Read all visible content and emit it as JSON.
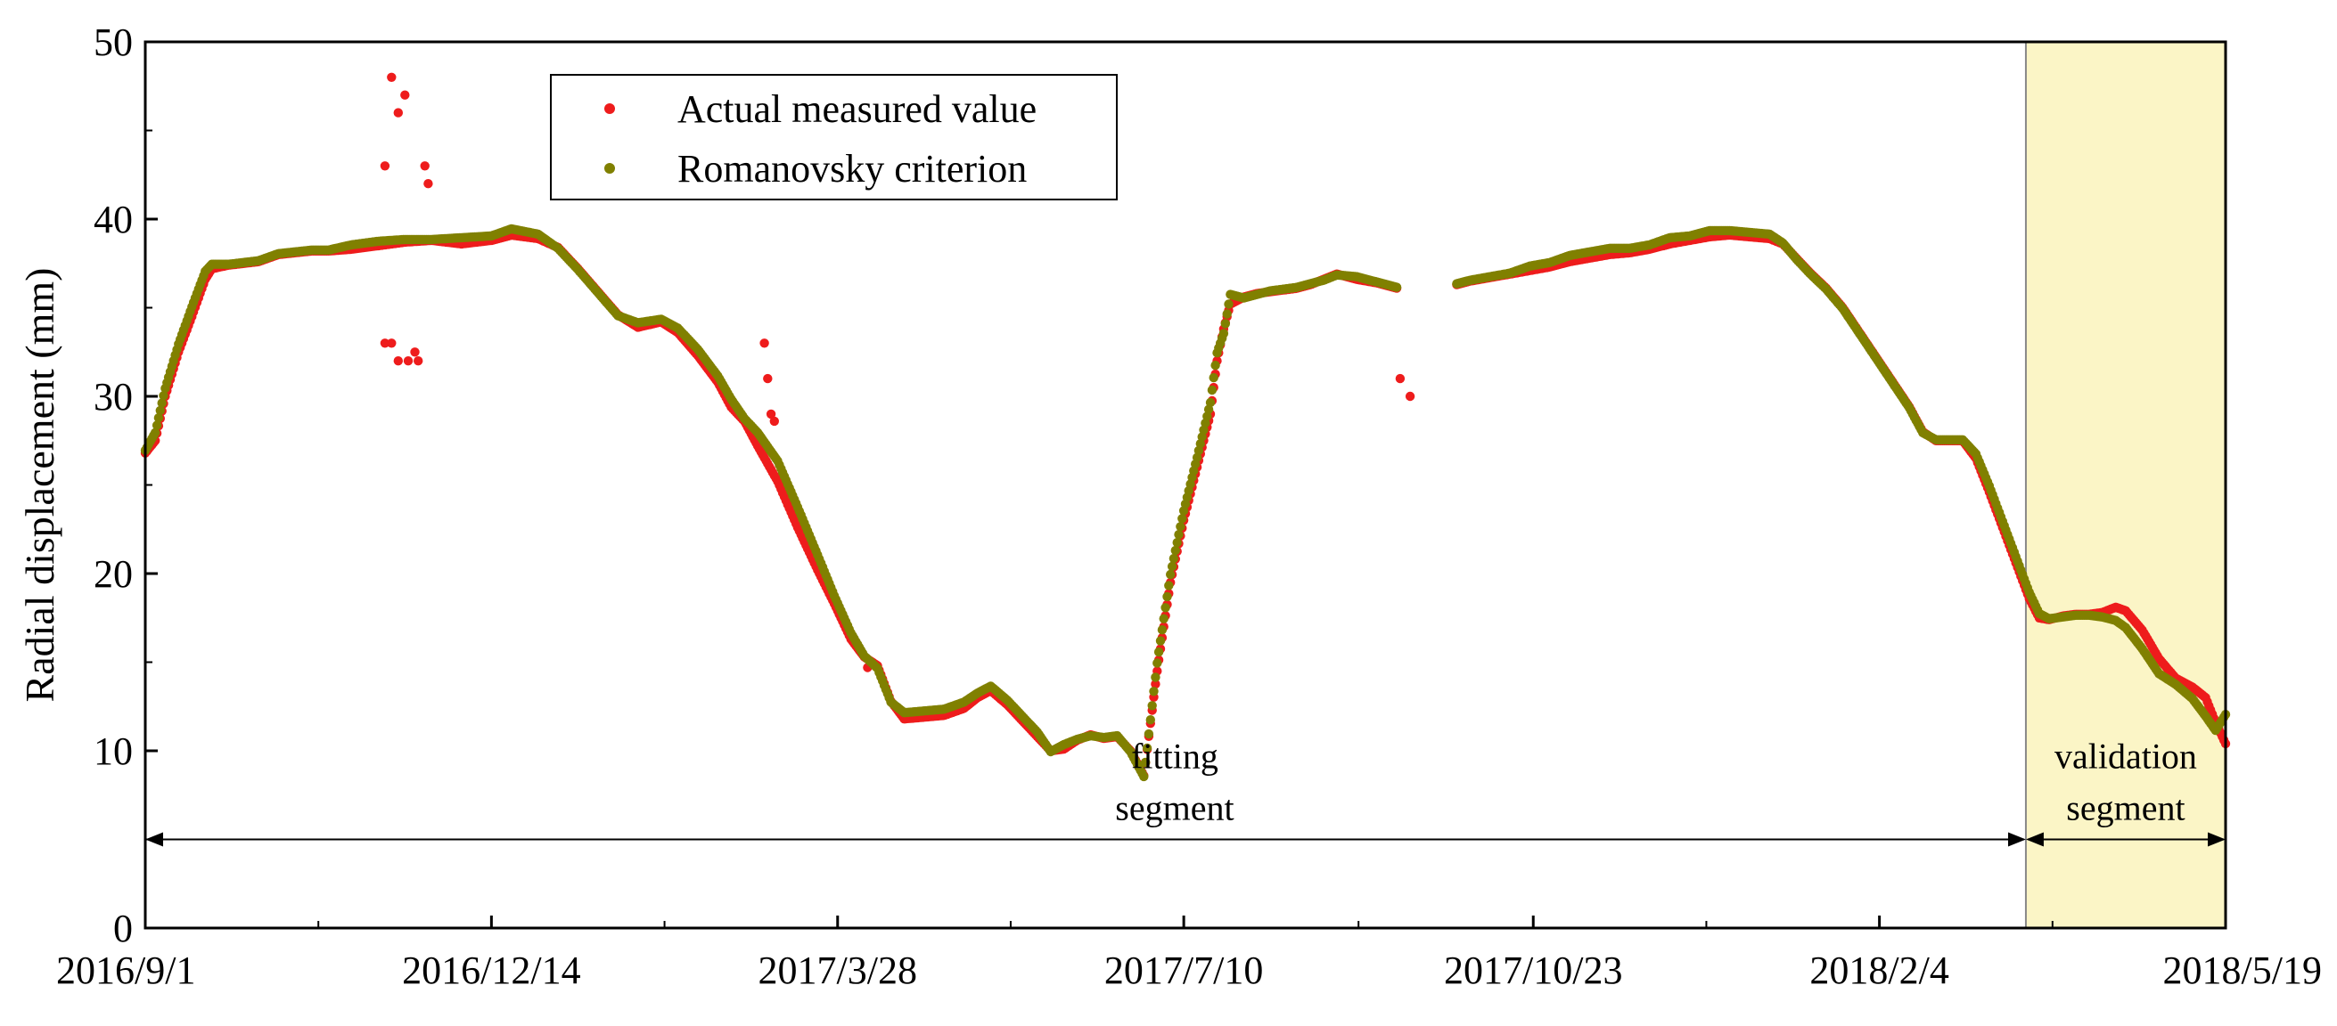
{
  "chart_data": {
    "type": "scatter",
    "title": "",
    "xlabel": "",
    "ylabel": "Radial displacement (mm)",
    "x_unit": "days since 2016/9/1",
    "xlim": [
      0,
      625
    ],
    "ylim": [
      0,
      50
    ],
    "yticks": [
      0,
      10,
      20,
      30,
      40,
      50
    ],
    "xticks": [
      {
        "value": 0,
        "label": "2016/9/1"
      },
      {
        "value": 104,
        "label": "2016/12/14"
      },
      {
        "value": 208,
        "label": "2017/3/28"
      },
      {
        "value": 312,
        "label": "2017/7/10"
      },
      {
        "value": 417,
        "label": "2017/10/23"
      },
      {
        "value": 521,
        "label": "2018/2/4"
      },
      {
        "value": 625,
        "label": "2018/5/19"
      }
    ],
    "grid": false,
    "legend_position": "top-center",
    "colors": {
      "actual": "#ee1c1c",
      "romanovsky": "#808000",
      "validation_fill": "#fbf5c6"
    },
    "series": [
      {
        "name": "Actual measured value",
        "color_key": "actual",
        "points": [
          [
            0,
            26.8
          ],
          [
            3,
            27.5
          ],
          [
            6,
            30
          ],
          [
            10,
            32.5
          ],
          [
            14,
            34.5
          ],
          [
            18,
            36.6
          ],
          [
            20,
            37.2
          ],
          [
            25,
            37.4
          ],
          [
            34,
            37.6
          ],
          [
            40,
            38
          ],
          [
            45,
            38.1
          ],
          [
            50,
            38.2
          ],
          [
            55,
            38.2
          ],
          [
            62,
            38.3
          ],
          [
            70,
            38.5
          ],
          [
            78,
            38.7
          ],
          [
            86,
            38.8
          ],
          [
            95,
            38.6
          ],
          [
            104,
            38.8
          ],
          [
            110,
            39.1
          ],
          [
            118,
            38.9
          ],
          [
            124,
            38.4
          ],
          [
            130,
            37.2
          ],
          [
            136,
            35.9
          ],
          [
            142,
            34.6
          ],
          [
            148,
            33.9
          ],
          [
            155,
            34.2
          ],
          [
            160,
            33.6
          ],
          [
            166,
            32.3
          ],
          [
            172,
            30.8
          ],
          [
            176,
            29.4
          ],
          [
            180,
            28.6
          ],
          [
            184,
            27.2
          ],
          [
            190,
            25.2
          ],
          [
            196,
            22.6
          ],
          [
            202,
            20.2
          ],
          [
            207,
            18.3
          ],
          [
            212,
            16.3
          ],
          [
            216,
            15.3
          ],
          [
            220,
            14.8
          ],
          [
            224,
            12.8
          ],
          [
            228,
            11.8
          ],
          [
            234,
            11.9
          ],
          [
            240,
            12
          ],
          [
            246,
            12.4
          ],
          [
            250,
            13
          ],
          [
            254,
            13.4
          ],
          [
            259,
            12.6
          ],
          [
            264,
            11.6
          ],
          [
            268,
            10.8
          ],
          [
            272,
            10
          ],
          [
            276,
            10.1
          ],
          [
            280,
            10.6
          ],
          [
            284,
            10.9
          ],
          [
            288,
            10.7
          ],
          [
            292,
            10.8
          ],
          [
            296,
            10
          ],
          [
            300,
            8.6
          ],
          [
            304,
            14.5
          ],
          [
            308,
            19.5
          ],
          [
            312,
            23
          ],
          [
            316,
            26
          ],
          [
            320,
            29
          ],
          [
            322,
            32
          ],
          [
            324,
            33.8
          ],
          [
            326,
            35.2
          ],
          [
            330,
            35.6
          ],
          [
            334,
            35.8
          ],
          [
            338,
            35.9
          ],
          [
            342,
            36
          ],
          [
            346,
            36.1
          ],
          [
            350,
            36.3
          ],
          [
            354,
            36.6
          ],
          [
            358,
            36.9
          ],
          [
            364,
            36.6
          ],
          [
            370,
            36.4
          ],
          [
            376,
            36.1
          ],
          [
            394,
            36.3
          ],
          [
            398,
            36.5
          ],
          [
            404,
            36.7
          ],
          [
            410,
            36.9
          ],
          [
            416,
            37.1
          ],
          [
            422,
            37.3
          ],
          [
            428,
            37.6
          ],
          [
            434,
            37.8
          ],
          [
            440,
            38
          ],
          [
            446,
            38.1
          ],
          [
            452,
            38.3
          ],
          [
            458,
            38.6
          ],
          [
            464,
            38.8
          ],
          [
            470,
            39
          ],
          [
            476,
            39.1
          ],
          [
            482,
            39
          ],
          [
            488,
            38.9
          ],
          [
            492,
            38.6
          ],
          [
            496,
            37.8
          ],
          [
            500,
            37
          ],
          [
            505,
            36.1
          ],
          [
            510,
            35
          ],
          [
            515,
            33.6
          ],
          [
            520,
            32.2
          ],
          [
            525,
            30.8
          ],
          [
            530,
            29.4
          ],
          [
            534,
            28
          ],
          [
            538,
            27.5
          ],
          [
            542,
            27.5
          ],
          [
            546,
            27.5
          ],
          [
            550,
            26.5
          ],
          [
            554,
            24.6
          ],
          [
            558,
            22.6
          ],
          [
            562,
            20.6
          ],
          [
            566,
            18.6
          ],
          [
            569,
            17.5
          ],
          [
            572,
            17.4
          ],
          [
            576,
            17.6
          ],
          [
            580,
            17.7
          ],
          [
            584,
            17.7
          ],
          [
            588,
            17.8
          ],
          [
            592,
            18.1
          ],
          [
            595,
            17.9
          ],
          [
            600,
            16.8
          ],
          [
            605,
            15.2
          ],
          [
            610,
            14.1
          ],
          [
            615,
            13.6
          ],
          [
            619,
            13
          ],
          [
            622,
            11.6
          ],
          [
            625,
            10.4
          ]
        ]
      },
      {
        "name": "Romanovsky criterion",
        "color_key": "romanovsky",
        "points": [
          [
            0,
            26.8
          ],
          [
            3,
            27.8
          ],
          [
            6,
            30.3
          ],
          [
            10,
            32.8
          ],
          [
            14,
            34.9
          ],
          [
            18,
            36.9
          ],
          [
            20,
            37.3
          ],
          [
            25,
            37.3
          ],
          [
            34,
            37.5
          ],
          [
            40,
            37.9
          ],
          [
            45,
            38
          ],
          [
            50,
            38.1
          ],
          [
            55,
            38.1
          ],
          [
            62,
            38.4
          ],
          [
            70,
            38.6
          ],
          [
            78,
            38.7
          ],
          [
            86,
            38.7
          ],
          [
            95,
            38.8
          ],
          [
            104,
            38.9
          ],
          [
            110,
            39.3
          ],
          [
            118,
            39
          ],
          [
            124,
            38.2
          ],
          [
            130,
            37
          ],
          [
            136,
            35.7
          ],
          [
            142,
            34.4
          ],
          [
            148,
            34
          ],
          [
            155,
            34.2
          ],
          [
            160,
            33.7
          ],
          [
            166,
            32.5
          ],
          [
            172,
            31
          ],
          [
            176,
            29.7
          ],
          [
            180,
            28.6
          ],
          [
            184,
            27.8
          ],
          [
            190,
            26.2
          ],
          [
            196,
            23.6
          ],
          [
            202,
            20.9
          ],
          [
            207,
            18.6
          ],
          [
            212,
            16.5
          ],
          [
            216,
            15.2
          ],
          [
            220,
            14.5
          ],
          [
            224,
            12.6
          ],
          [
            228,
            12
          ],
          [
            234,
            12.1
          ],
          [
            240,
            12.2
          ],
          [
            246,
            12.6
          ],
          [
            250,
            13.1
          ],
          [
            254,
            13.5
          ],
          [
            259,
            12.7
          ],
          [
            264,
            11.7
          ],
          [
            268,
            10.9
          ],
          [
            272,
            9.8
          ],
          [
            276,
            10.2
          ],
          [
            280,
            10.5
          ],
          [
            284,
            10.7
          ],
          [
            288,
            10.6
          ],
          [
            292,
            10.7
          ],
          [
            296,
            9.8
          ],
          [
            300,
            8.4
          ],
          [
            304,
            14.8
          ],
          [
            308,
            19.8
          ],
          [
            312,
            23.4
          ],
          [
            316,
            26.4
          ],
          [
            320,
            29.5
          ],
          [
            322,
            32.3
          ],
          [
            324,
            33.4
          ],
          [
            326,
            35.6
          ],
          [
            330,
            35.4
          ],
          [
            334,
            35.6
          ],
          [
            338,
            35.8
          ],
          [
            342,
            35.9
          ],
          [
            346,
            36
          ],
          [
            350,
            36.2
          ],
          [
            354,
            36.4
          ],
          [
            358,
            36.7
          ],
          [
            364,
            36.6
          ],
          [
            370,
            36.3
          ],
          [
            376,
            36
          ],
          [
            394,
            36.2
          ],
          [
            398,
            36.4
          ],
          [
            404,
            36.6
          ],
          [
            410,
            36.8
          ],
          [
            416,
            37.2
          ],
          [
            422,
            37.4
          ],
          [
            428,
            37.8
          ],
          [
            434,
            38
          ],
          [
            440,
            38.2
          ],
          [
            446,
            38.2
          ],
          [
            452,
            38.4
          ],
          [
            458,
            38.8
          ],
          [
            464,
            38.9
          ],
          [
            470,
            39.2
          ],
          [
            476,
            39.2
          ],
          [
            482,
            39.1
          ],
          [
            488,
            39
          ],
          [
            492,
            38.5
          ],
          [
            496,
            37.6
          ],
          [
            500,
            36.8
          ],
          [
            505,
            35.9
          ],
          [
            510,
            34.8
          ],
          [
            515,
            33.4
          ],
          [
            520,
            32
          ],
          [
            525,
            30.6
          ],
          [
            530,
            29.2
          ],
          [
            534,
            27.8
          ],
          [
            538,
            27.4
          ],
          [
            542,
            27.4
          ],
          [
            546,
            27.4
          ],
          [
            550,
            26.6
          ],
          [
            554,
            24.8
          ],
          [
            558,
            22.8
          ],
          [
            562,
            20.8
          ],
          [
            566,
            18.8
          ],
          [
            569,
            17.6
          ],
          [
            572,
            17.3
          ],
          [
            576,
            17.4
          ],
          [
            580,
            17.5
          ],
          [
            584,
            17.5
          ],
          [
            588,
            17.4
          ],
          [
            592,
            17.2
          ],
          [
            595,
            16.8
          ],
          [
            600,
            15.6
          ],
          [
            605,
            14.2
          ],
          [
            610,
            13.6
          ],
          [
            615,
            12.8
          ],
          [
            619,
            11.8
          ],
          [
            622,
            11
          ],
          [
            625,
            11.9
          ]
        ]
      }
    ],
    "outliers": [
      [
        72,
        43
      ],
      [
        74,
        48
      ],
      [
        76,
        46
      ],
      [
        78,
        47
      ],
      [
        84,
        43
      ],
      [
        85,
        42
      ],
      [
        72,
        33
      ],
      [
        74,
        33
      ],
      [
        76,
        32
      ],
      [
        79,
        32
      ],
      [
        81,
        32.5
      ],
      [
        82,
        32
      ],
      [
        186,
        33
      ],
      [
        187,
        31
      ],
      [
        188,
        29
      ],
      [
        189,
        28.6
      ],
      [
        217,
        14.7
      ],
      [
        218,
        15
      ],
      [
        377,
        31
      ],
      [
        380,
        30
      ]
    ],
    "shaded_region": {
      "from": 565,
      "to": 625,
      "label": "validation segment"
    },
    "annotations": [
      {
        "line1": "fitting",
        "line2": "segment",
        "from": 0,
        "to": 565,
        "arrow_y": 5
      },
      {
        "line1": "validation",
        "line2": "segment",
        "from": 565,
        "to": 625,
        "arrow_y": 5
      }
    ]
  }
}
